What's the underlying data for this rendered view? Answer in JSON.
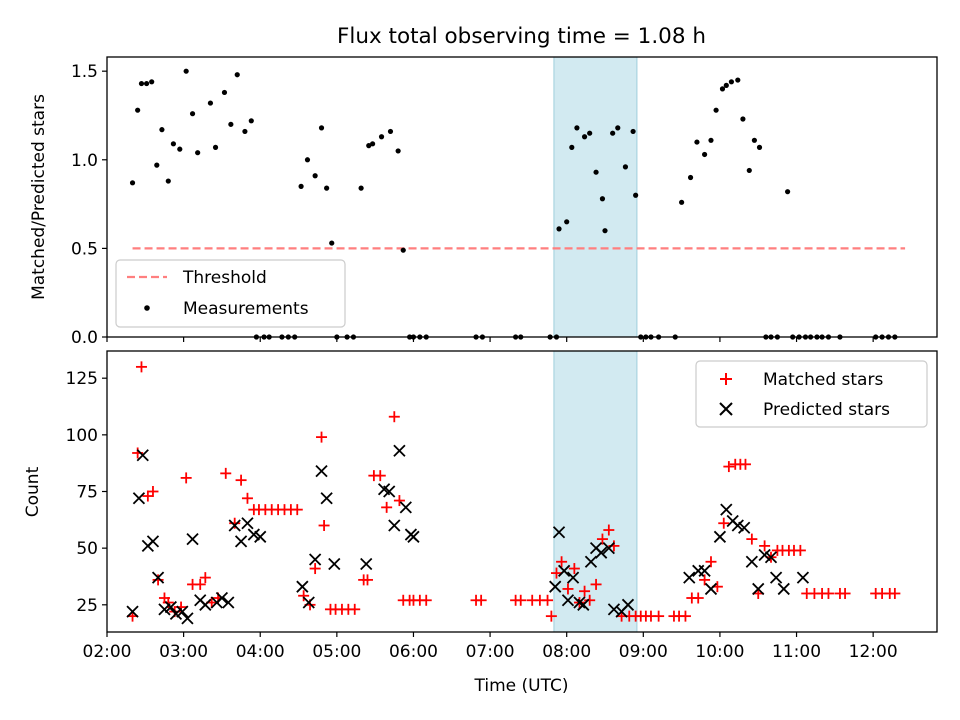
{
  "chart_data": [
    {
      "type": "scatter",
      "title": "Flux total observing time = 1.08 h",
      "xlabel": "",
      "ylabel": "Matched/Predicted stars",
      "xlim": [
        "02:00",
        "12:50"
      ],
      "ylim": [
        0,
        1.58
      ],
      "yticks": [
        "0.0",
        "0.5",
        "1.0",
        "1.5"
      ],
      "ytick_values": [
        0,
        0.5,
        1.0,
        1.5
      ],
      "shaded_interval": [
        "07:50",
        "08:55"
      ],
      "shade_color": "#add8e6",
      "threshold": {
        "name": "Threshold",
        "value": 0.5,
        "x_range": [
          "02:20",
          "12:25"
        ],
        "color": "#ff7f7f",
        "style": "dashed"
      },
      "legend": {
        "placement": "lower-left",
        "entries": [
          "Threshold",
          "Measurements"
        ]
      },
      "series": [
        {
          "name": "Measurements",
          "color": "#000000",
          "marker": "dot",
          "x": [
            "02:20",
            "02:24",
            "02:27",
            "02:31",
            "02:35",
            "02:39",
            "02:43",
            "02:48",
            "02:52",
            "02:57",
            "03:02",
            "03:07",
            "03:11",
            "03:21",
            "03:25",
            "03:32",
            "03:37",
            "03:42",
            "03:48",
            "03:53",
            "03:57",
            "04:03",
            "04:07",
            "04:17",
            "04:22",
            "04:27",
            "04:32",
            "04:37",
            "04:43",
            "04:48",
            "04:52",
            "04:56",
            "05:00",
            "05:08",
            "05:13",
            "05:19",
            "05:25",
            "05:28",
            "05:35",
            "05:42",
            "05:48",
            "05:52",
            "05:57",
            "06:00",
            "06:05",
            "06:10",
            "06:49",
            "06:54",
            "07:20",
            "07:24",
            "07:47",
            "07:52",
            "07:54",
            "08:00",
            "08:04",
            "08:08",
            "08:14",
            "08:18",
            "08:23",
            "08:28",
            "08:30",
            "08:36",
            "08:40",
            "08:46",
            "08:52",
            "08:54",
            "08:58",
            "09:02",
            "09:06",
            "09:12",
            "09:25",
            "09:30",
            "09:37",
            "09:42",
            "09:48",
            "09:53",
            "09:57",
            "10:02",
            "10:05",
            "10:09",
            "10:14",
            "10:18",
            "10:23",
            "10:27",
            "10:31",
            "10:36",
            "10:40",
            "10:45",
            "10:53",
            "10:57",
            "11:02",
            "11:07",
            "11:11",
            "11:16",
            "11:20",
            "11:25",
            "11:34",
            "12:02",
            "12:07",
            "12:12",
            "12:17"
          ],
          "y": [
            0.87,
            1.28,
            1.43,
            1.43,
            1.44,
            0.97,
            1.17,
            0.88,
            1.09,
            1.06,
            1.5,
            1.26,
            1.04,
            1.32,
            1.07,
            1.38,
            1.2,
            1.48,
            1.16,
            1.22,
            0,
            0,
            0,
            0,
            0,
            0,
            0.85,
            1.0,
            0.91,
            1.18,
            0.84,
            0.53,
            0,
            0,
            0,
            0.84,
            1.08,
            1.09,
            1.13,
            1.16,
            1.05,
            0.49,
            0,
            0,
            0,
            0,
            0,
            0,
            0,
            0,
            0,
            0,
            0.61,
            0.65,
            1.07,
            1.18,
            1.13,
            1.15,
            0.93,
            0.78,
            0.6,
            1.15,
            1.18,
            0.96,
            1.16,
            0.8,
            0,
            0,
            0,
            0,
            0,
            0.76,
            0.9,
            1.1,
            1.03,
            1.11,
            1.28,
            1.4,
            1.42,
            1.44,
            1.45,
            1.23,
            0.94,
            1.11,
            1.07,
            0,
            0,
            0,
            0.82,
            0,
            0,
            0,
            0,
            0,
            0,
            0,
            0,
            0,
            0,
            0,
            0
          ]
        }
      ]
    },
    {
      "type": "scatter",
      "title": "",
      "xlabel": "Time (UTC)",
      "ylabel": "Count",
      "xlim": [
        "02:00",
        "12:50"
      ],
      "ylim": [
        13,
        137
      ],
      "xticks": [
        "02:00",
        "03:00",
        "04:00",
        "05:00",
        "06:00",
        "07:00",
        "08:00",
        "09:00",
        "10:00",
        "11:00",
        "12:00"
      ],
      "yticks": [
        "25",
        "50",
        "75",
        "100",
        "125"
      ],
      "ytick_values": [
        25,
        50,
        75,
        100,
        125
      ],
      "shaded_interval": [
        "07:50",
        "08:55"
      ],
      "shade_color": "#add8e6",
      "legend": {
        "placement": "top-right",
        "entries": [
          "Matched stars",
          "Predicted stars"
        ]
      },
      "series": [
        {
          "name": "Matched stars",
          "color": "#ff0000",
          "marker": "plus",
          "x": [
            "02:20",
            "02:24",
            "02:27",
            "02:32",
            "02:36",
            "02:40",
            "02:45",
            "02:48",
            "02:53",
            "02:58",
            "03:02",
            "03:07",
            "03:13",
            "03:17",
            "03:22",
            "03:27",
            "03:33",
            "03:40",
            "03:45",
            "03:50",
            "03:55",
            "03:59",
            "04:04",
            "04:09",
            "04:14",
            "04:19",
            "04:24",
            "04:29",
            "04:34",
            "04:39",
            "04:43",
            "04:48",
            "04:50",
            "04:55",
            "04:59",
            "05:04",
            "05:09",
            "05:14",
            "05:21",
            "05:24",
            "05:29",
            "05:34",
            "05:39",
            "05:45",
            "05:49",
            "05:52",
            "05:57",
            "06:00",
            "06:05",
            "06:10",
            "06:49",
            "06:53",
            "07:20",
            "07:24",
            "07:33",
            "07:39",
            "07:45",
            "07:48",
            "07:52",
            "07:56",
            "08:01",
            "08:06",
            "08:10",
            "08:14",
            "08:18",
            "08:23",
            "08:28",
            "08:33",
            "08:37",
            "08:43",
            "08:49",
            "08:54",
            "08:58",
            "09:02",
            "09:06",
            "09:12",
            "09:24",
            "09:28",
            "09:33",
            "09:38",
            "09:43",
            "09:48",
            "09:53",
            "09:58",
            "10:03",
            "10:07",
            "10:12",
            "10:16",
            "10:20",
            "10:25",
            "10:30",
            "10:35",
            "10:40",
            "10:45",
            "10:49",
            "10:54",
            "10:58",
            "11:03",
            "11:08",
            "11:14",
            "11:20",
            "11:25",
            "11:34",
            "11:38",
            "12:02",
            "12:07",
            "12:13",
            "12:17"
          ],
          "y": [
            20,
            92,
            130,
            73,
            75,
            36,
            28,
            26,
            22,
            24,
            81,
            34,
            34,
            37,
            26,
            28,
            83,
            61,
            80,
            72,
            67,
            67,
            67,
            67,
            67,
            67,
            67,
            67,
            29,
            25,
            41,
            99,
            60,
            23,
            23,
            23,
            23,
            23,
            36,
            36,
            82,
            82,
            68,
            108,
            71,
            27,
            27,
            27,
            27,
            27,
            27,
            27,
            27,
            27,
            27,
            27,
            27,
            20,
            39,
            44,
            32,
            41,
            26,
            31,
            27,
            34,
            54,
            58,
            51,
            20,
            20,
            20,
            20,
            20,
            20,
            20,
            20,
            20,
            20,
            28,
            28,
            36,
            44,
            33,
            61,
            86,
            87,
            87,
            87,
            54,
            30,
            51,
            46,
            49,
            49,
            49,
            49,
            49,
            30,
            30,
            30,
            30,
            30,
            30,
            30,
            30,
            30,
            30
          ]
        },
        {
          "name": "Predicted stars",
          "color": "#000000",
          "marker": "x",
          "x": [
            "02:20",
            "02:25",
            "02:28",
            "02:32",
            "02:36",
            "02:40",
            "02:45",
            "02:50",
            "02:54",
            "02:59",
            "03:03",
            "03:07",
            "03:13",
            "03:17",
            "03:26",
            "03:30",
            "03:35",
            "03:40",
            "03:45",
            "03:50",
            "03:55",
            "04:00",
            "04:33",
            "04:38",
            "04:43",
            "04:48",
            "04:52",
            "04:58",
            "05:23",
            "05:37",
            "05:41",
            "05:45",
            "05:49",
            "05:54",
            "05:58",
            "06:00",
            "07:51",
            "07:54",
            "07:58",
            "08:01",
            "08:05",
            "08:10",
            "08:13",
            "08:19",
            "08:23",
            "08:27",
            "08:33",
            "08:37",
            "08:43",
            "08:48",
            "09:36",
            "09:43",
            "09:48",
            "09:53",
            "10:00",
            "10:05",
            "10:10",
            "10:14",
            "10:19",
            "10:25",
            "10:30",
            "10:35",
            "10:40",
            "10:44",
            "10:50",
            "11:05"
          ],
          "y": [
            22,
            72,
            91,
            51,
            53,
            37,
            23,
            24,
            21,
            22,
            19,
            54,
            27,
            25,
            26,
            28,
            26,
            60,
            53,
            61,
            56,
            55,
            33,
            26,
            45,
            84,
            72,
            43,
            43,
            76,
            75,
            60,
            93,
            68,
            56,
            55,
            33,
            57,
            40,
            27,
            37,
            26,
            25,
            44,
            50,
            48,
            50,
            23,
            22,
            25,
            37,
            40,
            40,
            32,
            55,
            67,
            62,
            60,
            59,
            44,
            32,
            47,
            46,
            37,
            32,
            37
          ]
        }
      ]
    }
  ]
}
